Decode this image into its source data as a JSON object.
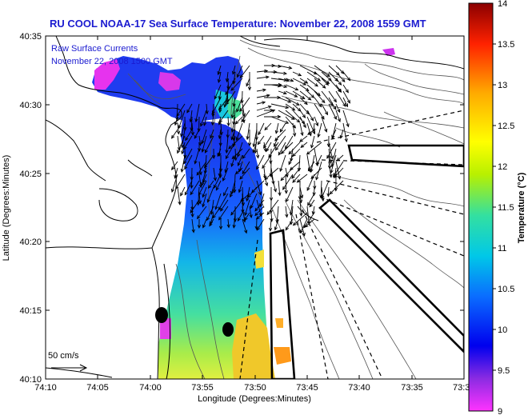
{
  "title": "RU COOL  NOAA-17  Sea Surface Temperature:  November 22, 2008 1559 GMT",
  "legend": {
    "line1": "Raw Surface Currents",
    "line2": "November 22, 2008 1500 GMT"
  },
  "axes": {
    "xlabel": "Longitude (Degrees:Minutes)",
    "ylabel": "Latitude (Degrees:Minutes)",
    "x_ticks": [
      "74:10",
      "74:05",
      "74:00",
      "73:55",
      "73:50",
      "73:45",
      "73:40",
      "73:35",
      "73:3"
    ],
    "y_ticks": [
      "40:35",
      "40:30",
      "40:25",
      "40:20",
      "40:15",
      "40:10"
    ]
  },
  "scale": {
    "label": "50 cm/s",
    "value_cm_s": 50
  },
  "colorbar": {
    "label": "Temperature (°C)",
    "ticks": [
      "14",
      "13.5",
      "13",
      "12.5",
      "12",
      "11.5",
      "11",
      "10.5",
      "10",
      "9.5",
      "9"
    ],
    "min": 9,
    "max": 14
  },
  "colors": {
    "title": "#1a1ad0",
    "background": "#ffffff",
    "coast": "#000000"
  }
}
